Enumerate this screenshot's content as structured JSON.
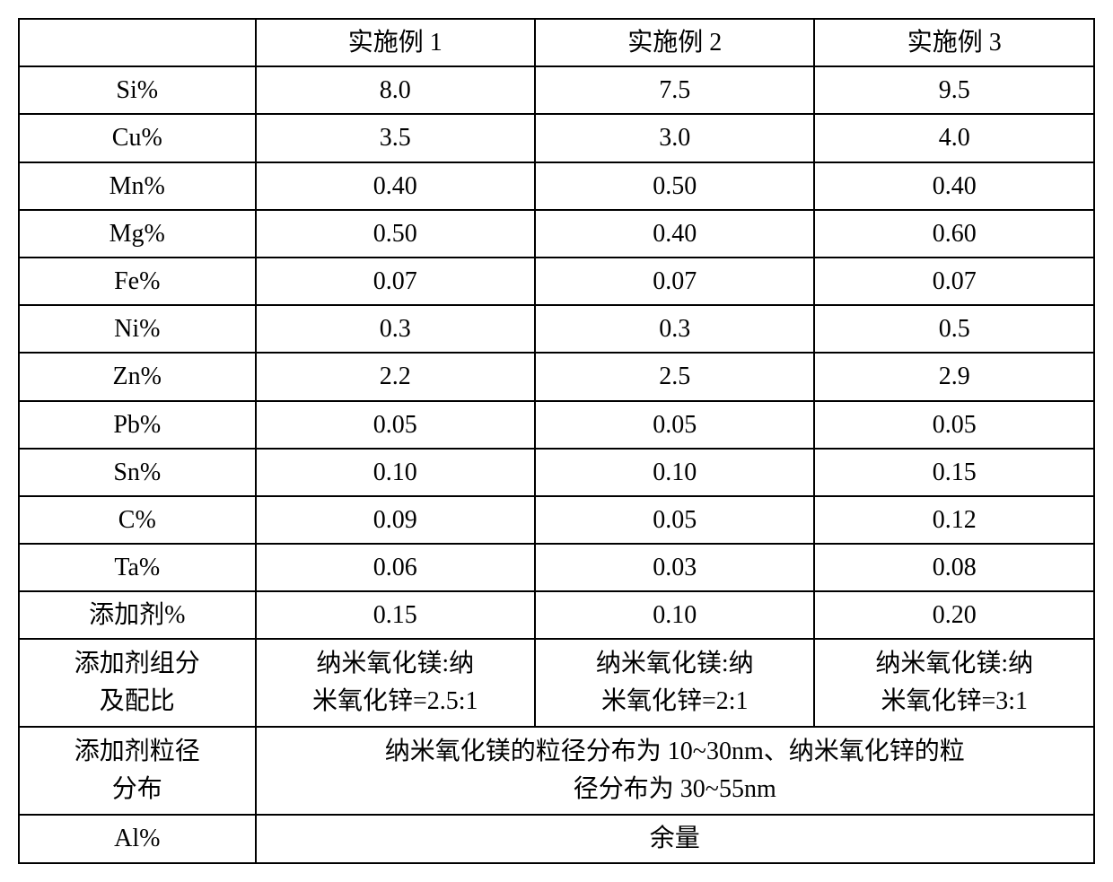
{
  "table": {
    "type": "table",
    "background_color": "#ffffff",
    "text_color": "#000000",
    "border_color": "#000000",
    "font_size_pt": 21,
    "font_family": "SimSun",
    "column_widths_pct": [
      22,
      26,
      26,
      26
    ],
    "header": {
      "blank": "",
      "col1": "实施例 1",
      "col2": "实施例 2",
      "col3": "实施例 3"
    },
    "rows": {
      "si": {
        "label": "Si%",
        "v1": "8.0",
        "v2": "7.5",
        "v3": "9.5"
      },
      "cu": {
        "label": "Cu%",
        "v1": "3.5",
        "v2": "3.0",
        "v3": "4.0"
      },
      "mn": {
        "label": "Mn%",
        "v1": "0.40",
        "v2": "0.50",
        "v3": "0.40"
      },
      "mg": {
        "label": "Mg%",
        "v1": "0.50",
        "v2": "0.40",
        "v3": "0.60"
      },
      "fe": {
        "label": "Fe%",
        "v1": "0.07",
        "v2": "0.07",
        "v3": "0.07"
      },
      "ni": {
        "label": "Ni%",
        "v1": "0.3",
        "v2": "0.3",
        "v3": "0.5"
      },
      "zn": {
        "label": "Zn%",
        "v1": "2.2",
        "v2": "2.5",
        "v3": "2.9"
      },
      "pb": {
        "label": "Pb%",
        "v1": "0.05",
        "v2": "0.05",
        "v3": "0.05"
      },
      "sn": {
        "label": "Sn%",
        "v1": "0.10",
        "v2": "0.10",
        "v3": "0.15"
      },
      "c": {
        "label": "C%",
        "v1": "0.09",
        "v2": "0.05",
        "v3": "0.12"
      },
      "ta": {
        "label": "Ta%",
        "v1": "0.06",
        "v2": "0.03",
        "v3": "0.08"
      },
      "additive_pct": {
        "label": "添加剂%",
        "v1": "0.15",
        "v2": "0.10",
        "v3": "0.20"
      },
      "additive_ratio": {
        "label_line1": "添加剂组分",
        "label_line2": "及配比",
        "v1_line1": "纳米氧化镁:纳",
        "v1_line2": "米氧化锌=2.5:1",
        "v2_line1": "纳米氧化镁:纳",
        "v2_line2": "米氧化锌=2:1",
        "v3_line1": "纳米氧化镁:纳",
        "v3_line2": "米氧化锌=3:1"
      },
      "particle_dist": {
        "label_line1": "添加剂粒径",
        "label_line2": "分布",
        "merged_line1": "纳米氧化镁的粒径分布为 10~30nm、纳米氧化锌的粒",
        "merged_line2": "径分布为 30~55nm"
      },
      "al": {
        "label": "Al%",
        "merged": "余量"
      }
    }
  }
}
